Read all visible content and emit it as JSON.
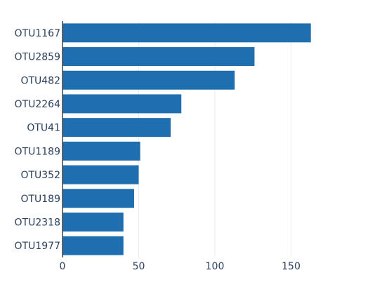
{
  "chart_data": {
    "type": "bar",
    "orientation": "horizontal",
    "categories": [
      "OTU1167",
      "OTU2859",
      "OTU482",
      "OTU2264",
      "OTU41",
      "OTU1189",
      "OTU352",
      "OTU189",
      "OTU2318",
      "OTU1977"
    ],
    "values": [
      163,
      126,
      113,
      78,
      71,
      51,
      50,
      47,
      40,
      40
    ],
    "xlim": [
      0,
      200
    ],
    "xticks": [
      0,
      50,
      100,
      150
    ],
    "xtick_labels": [
      "0",
      "50",
      "100",
      "150"
    ],
    "title": "",
    "xlabel": "",
    "ylabel": "",
    "grid": "vertical",
    "bar_color": "#1f6fb0"
  }
}
